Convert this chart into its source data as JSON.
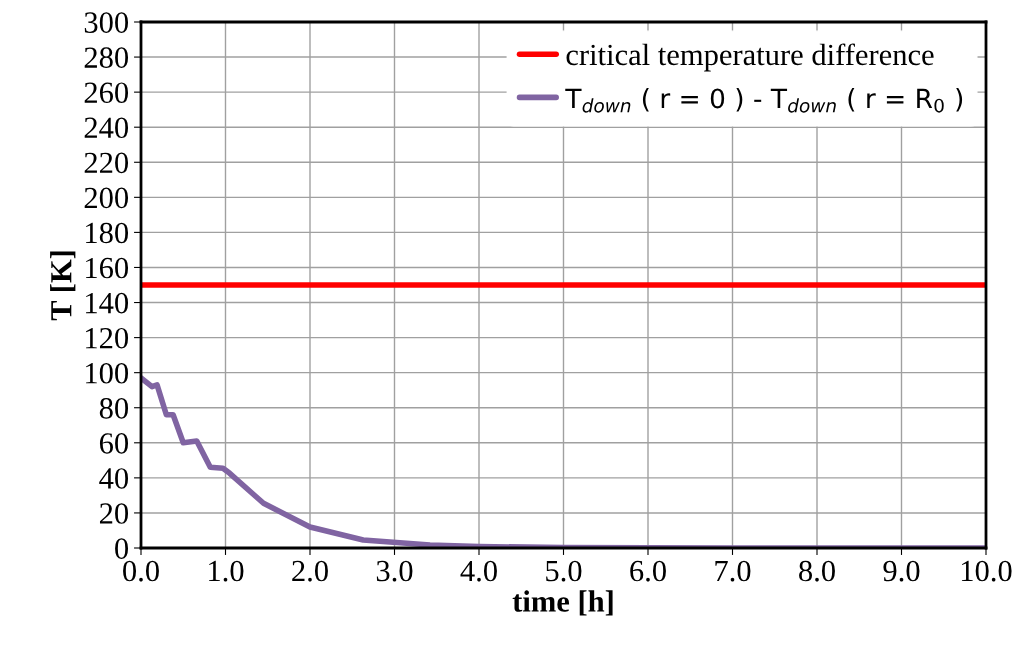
{
  "chart_data": {
    "type": "line",
    "xlabel": "time [h]",
    "ylabel": "T [K]",
    "xlim": [
      0,
      10
    ],
    "xticks": [
      {
        "value": 0,
        "label": "0.0"
      },
      {
        "value": 1,
        "label": "1.0"
      },
      {
        "value": 2,
        "label": "2.0"
      },
      {
        "value": 3,
        "label": "3.0"
      },
      {
        "value": 4,
        "label": "4.0"
      },
      {
        "value": 5,
        "label": "5.0"
      },
      {
        "value": 6,
        "label": "6.0"
      },
      {
        "value": 7,
        "label": "7.0"
      },
      {
        "value": 8,
        "label": "8.0"
      },
      {
        "value": 9,
        "label": "9.0"
      },
      {
        "value": 10,
        "label": "10.0"
      }
    ],
    "ylim": [
      0,
      300
    ],
    "yticks": [
      0,
      20,
      40,
      60,
      80,
      100,
      120,
      140,
      160,
      180,
      200,
      220,
      240,
      260,
      280,
      300
    ],
    "grid": true,
    "legend": "top right",
    "marker": "none",
    "line_style": "solid",
    "series": [
      {
        "name": "critical temperature difference",
        "color": "#ff0000",
        "x": [
          0,
          10
        ],
        "values": [
          150,
          150
        ]
      },
      {
        "name": "T$_{down}$ ( r = 0 ) - T$_{down}$ ( r = R$_{0}$ )",
        "color": "#8064a2",
        "x": [
          0,
          0.13,
          0.19,
          0.3,
          0.38,
          0.5,
          0.66,
          0.82,
          0.97,
          1.05,
          1.45,
          2.0,
          2.63,
          3.42,
          4.0,
          5.0,
          6.0,
          7.0,
          8.0,
          9.0,
          10.0
        ],
        "values": [
          97,
          92,
          93,
          76,
          76,
          60,
          61,
          46,
          45.5,
          42.6,
          25.5,
          12,
          4.6,
          1.7,
          0.8,
          0.3,
          0.1,
          0,
          0,
          0,
          0
        ]
      }
    ]
  }
}
